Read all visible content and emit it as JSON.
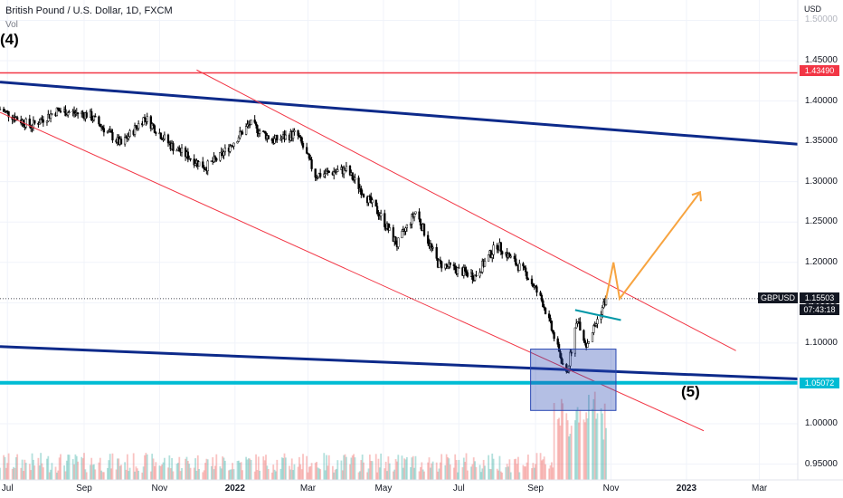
{
  "header": {
    "title": "British Pound / U.S. Dollar, 1D, FXCM",
    "volume_label": "Vol"
  },
  "annotations": {
    "wave4": "(4)",
    "wave5": "(5)"
  },
  "price_scale": {
    "currency": "USD",
    "levels": [
      "1.50000",
      "1.45000",
      "1.40000",
      "1.35000",
      "1.30000",
      "1.25000",
      "1.20000",
      "1.15000",
      "1.10000",
      "1.05000",
      "1.00000",
      "0.95000"
    ],
    "level_1": {
      "value": "1.43490",
      "color": "#f23645"
    },
    "symbol_tag": "GBPUSD",
    "last_price": "1.15503",
    "countdown": "07:43:18",
    "level_2": {
      "value": "1.05072",
      "color": "#00bcd4"
    }
  },
  "time_axis": [
    "Jul",
    "Sep",
    "Nov",
    "2022",
    "Mar",
    "May",
    "Jul",
    "Sep",
    "Nov",
    "2023",
    "Mar"
  ],
  "chart_data": {
    "type": "candlestick",
    "title": "British Pound / U.S. Dollar, 1D, FXCM",
    "y_range": [
      0.93,
      1.51
    ],
    "x_range": [
      "2021-06-25",
      "2023-04-01"
    ],
    "close_points": [
      [
        "2021-06-25",
        1.39
      ],
      [
        "2021-07-20",
        1.369
      ],
      [
        "2021-08-10",
        1.388
      ],
      [
        "2021-09-05",
        1.383
      ],
      [
        "2021-10-01",
        1.346
      ],
      [
        "2021-10-20",
        1.38
      ],
      [
        "2021-11-10",
        1.345
      ],
      [
        "2021-12-08",
        1.318
      ],
      [
        "2021-12-20",
        1.331
      ],
      [
        "2022-01-13",
        1.372
      ],
      [
        "2022-02-01",
        1.351
      ],
      [
        "2022-02-20",
        1.36
      ],
      [
        "2022-03-07",
        1.308
      ],
      [
        "2022-04-01",
        1.315
      ],
      [
        "2022-04-29",
        1.257
      ],
      [
        "2022-05-12",
        1.222
      ],
      [
        "2022-05-27",
        1.263
      ],
      [
        "2022-06-14",
        1.199
      ],
      [
        "2022-07-14",
        1.183
      ],
      [
        "2022-08-01",
        1.222
      ],
      [
        "2022-08-25",
        1.185
      ],
      [
        "2022-09-07",
        1.15
      ],
      [
        "2022-09-26",
        1.06
      ],
      [
        "2022-10-05",
        1.131
      ],
      [
        "2022-10-12",
        1.098
      ],
      [
        "2022-10-20",
        1.125
      ],
      [
        "2022-10-28",
        1.155
      ]
    ],
    "horizontal_levels": [
      1.4349,
      1.05072
    ],
    "projection": [
      [
        "2022-11-03",
        1.2
      ],
      [
        "2022-11-08",
        1.155
      ],
      [
        "2023-01-12",
        1.287
      ]
    ],
    "volume_series": "Vol"
  }
}
